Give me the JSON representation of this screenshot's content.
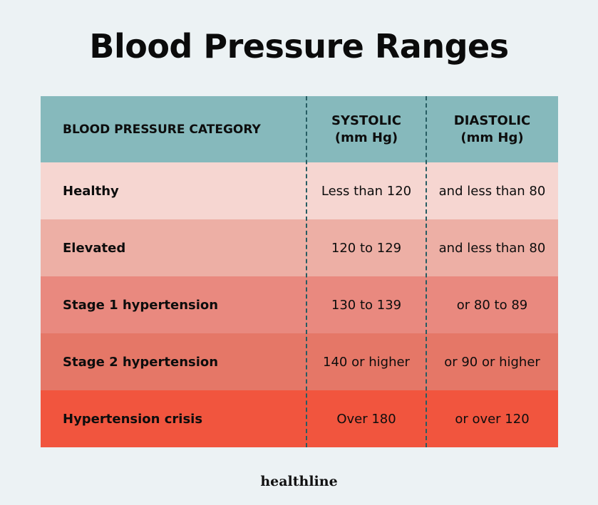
{
  "title": "Blood Pressure Ranges",
  "logo": "healthline",
  "chart_data": {
    "type": "table",
    "columns": [
      {
        "line1": "BLOOD PRESSURE CATEGORY",
        "line2": ""
      },
      {
        "line1": "SYSTOLIC",
        "line2": "(mm Hg)"
      },
      {
        "line1": "DIASTOLIC",
        "line2": "(mm Hg)"
      }
    ],
    "rows": [
      {
        "category": "Healthy",
        "systolic": "Less than 120",
        "diastolic": "and less than 80",
        "color": "#f6d6d1"
      },
      {
        "category": "Elevated",
        "systolic": "120 to 129",
        "diastolic": "and less than 80",
        "color": "#edafa5"
      },
      {
        "category": "Stage 1 hypertension",
        "systolic": "130 to 139",
        "diastolic": "or 80 to 89",
        "color": "#e9897f"
      },
      {
        "category": "Stage 2 hypertension",
        "systolic": "140 or higher",
        "diastolic": "or 90 or higher",
        "color": "#e57767"
      },
      {
        "category": "Hypertension crisis",
        "systolic": "Over 180",
        "diastolic": "or over 120",
        "color": "#f1553e"
      }
    ]
  }
}
